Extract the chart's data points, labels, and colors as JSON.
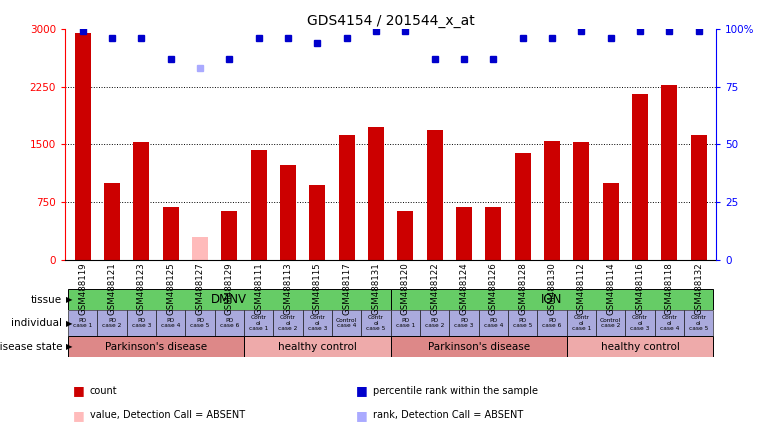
{
  "title": "GDS4154 / 201544_x_at",
  "samples": [
    "GSM488119",
    "GSM488121",
    "GSM488123",
    "GSM488125",
    "GSM488127",
    "GSM488129",
    "GSM488111",
    "GSM488113",
    "GSM488115",
    "GSM488117",
    "GSM488131",
    "GSM488120",
    "GSM488122",
    "GSM488124",
    "GSM488126",
    "GSM488128",
    "GSM488130",
    "GSM488112",
    "GSM488114",
    "GSM488116",
    "GSM488118",
    "GSM488132"
  ],
  "bar_values": [
    2950,
    1000,
    1530,
    680,
    300,
    630,
    1420,
    1230,
    970,
    1620,
    1730,
    630,
    1680,
    680,
    680,
    1390,
    1540,
    1530,
    1000,
    2160,
    2270,
    1620
  ],
  "bar_colors": [
    "#cc0000",
    "#cc0000",
    "#cc0000",
    "#cc0000",
    "#ffbbbb",
    "#cc0000",
    "#cc0000",
    "#cc0000",
    "#cc0000",
    "#cc0000",
    "#cc0000",
    "#cc0000",
    "#cc0000",
    "#cc0000",
    "#cc0000",
    "#cc0000",
    "#cc0000",
    "#cc0000",
    "#cc0000",
    "#cc0000",
    "#cc0000",
    "#cc0000"
  ],
  "rank_values": [
    99,
    96,
    96,
    87,
    83,
    87,
    96,
    96,
    94,
    96,
    99,
    99,
    87,
    87,
    87,
    96,
    96,
    99,
    96,
    99,
    99,
    99
  ],
  "rank_colors": [
    "#0000cc",
    "#0000cc",
    "#0000cc",
    "#0000cc",
    "#aaaaff",
    "#0000cc",
    "#0000cc",
    "#0000cc",
    "#0000cc",
    "#0000cc",
    "#0000cc",
    "#0000cc",
    "#0000cc",
    "#0000cc",
    "#0000cc",
    "#0000cc",
    "#0000cc",
    "#0000cc",
    "#0000cc",
    "#0000cc",
    "#0000cc",
    "#0000cc"
  ],
  "ylim_left": [
    0,
    3000
  ],
  "ylim_right": [
    0,
    100
  ],
  "yticks_left": [
    0,
    750,
    1500,
    2250,
    3000
  ],
  "yticks_right": [
    0,
    25,
    50,
    75,
    100
  ],
  "ytick_right_labels": [
    "0",
    "25",
    "50",
    "75",
    "100%"
  ],
  "tissue_groups": [
    {
      "label": "DMNV",
      "start": 0,
      "end": 10,
      "color": "#66cc66"
    },
    {
      "label": "ION",
      "start": 11,
      "end": 21,
      "color": "#66cc66"
    }
  ],
  "individual_labels": [
    "PD\ncase 1",
    "PD\ncase 2",
    "PD\ncase 3",
    "PD\ncase 4",
    "PD\ncase 5",
    "PD\ncase 6",
    "Contr\nol\ncase 1",
    "Contr\nol\ncase 2",
    "Contr\nol\ncase 3",
    "Control\ncase 4",
    "Contr\nol\ncase 5",
    "PD\ncase 1",
    "PD\ncase 2",
    "PD\ncase 3",
    "PD\ncase 4",
    "PD\ncase 5",
    "PD\ncase 6",
    "Contr\nol\ncase 1",
    "Control\ncase 2",
    "Contr\nol\ncase 3",
    "Contr\nol\ncase 4",
    "Contr\nol\ncase 5"
  ],
  "individual_color": "#aaaadd",
  "disease_groups": [
    {
      "label": "Parkinson's disease",
      "start": 0,
      "end": 5,
      "color": "#dd8888"
    },
    {
      "label": "healthy control",
      "start": 6,
      "end": 10,
      "color": "#eeaaaa"
    },
    {
      "label": "Parkinson's disease",
      "start": 11,
      "end": 16,
      "color": "#dd8888"
    },
    {
      "label": "healthy control",
      "start": 17,
      "end": 21,
      "color": "#eeaaaa"
    }
  ],
  "n_samples": 22,
  "bar_width": 0.55,
  "xlim": [
    -0.6,
    21.6
  ]
}
